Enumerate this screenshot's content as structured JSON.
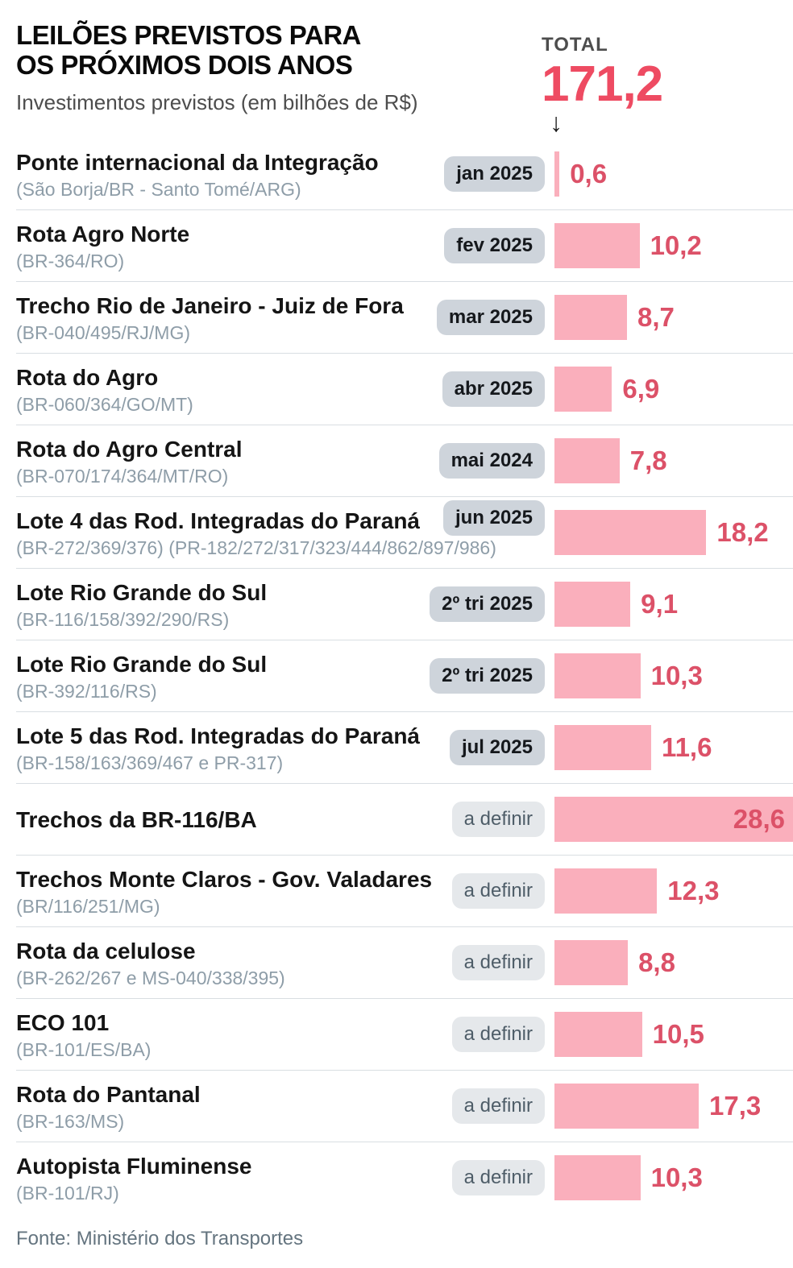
{
  "header": {
    "title_line1": "LEILÕES PREVISTOS PARA",
    "title_line2": "OS PRÓXIMOS DOIS ANOS",
    "subtitle": "Investimentos previstos (em bilhões de R$)",
    "total_label": "TOTAL",
    "total_value": "171,2",
    "arrow": "↓"
  },
  "footer": {
    "source": "Fonte: Ministério dos Transportes"
  },
  "colors": {
    "bar": "#FAAFBC",
    "value": "#DC5168",
    "total": "#EE4B62",
    "badge_dated_bg": "#CED4DB",
    "badge_tbd_bg": "#E5E8EB",
    "badge_tbd_text": "#4E5D68",
    "detail": "#8E9DA8",
    "divider": "#D9DEE2"
  },
  "chart_data": {
    "type": "bar",
    "title": "LEILÕES PREVISTOS PARA OS PRÓXIMOS DOIS ANOS",
    "subtitle": "Investimentos previstos (em bilhões de R$)",
    "unit": "bilhões de R$",
    "total": 171.2,
    "max_value": 28.6,
    "orientation": "horizontal",
    "source": "Fonte: Ministério dos Transportes",
    "items": [
      {
        "name": "Ponte internacional da Integração",
        "detail": "(São Borja/BR - Santo Tomé/ARG)",
        "date": "jan 2025",
        "date_style": "dated",
        "value": 0.6,
        "value_label": "0,6",
        "label_inside": false,
        "badge_top": false
      },
      {
        "name": "Rota Agro Norte",
        "detail": "(BR-364/RO)",
        "date": "fev 2025",
        "date_style": "dated",
        "value": 10.2,
        "value_label": "10,2",
        "label_inside": false,
        "badge_top": false
      },
      {
        "name": "Trecho Rio de Janeiro - Juiz de Fora",
        "detail": "(BR-040/495/RJ/MG)",
        "date": "mar 2025",
        "date_style": "dated",
        "value": 8.7,
        "value_label": "8,7",
        "label_inside": false,
        "badge_top": false
      },
      {
        "name": "Rota do Agro",
        "detail": "(BR-060/364/GO/MT)",
        "date": "abr 2025",
        "date_style": "dated",
        "value": 6.9,
        "value_label": "6,9",
        "label_inside": false,
        "badge_top": false
      },
      {
        "name": "Rota do Agro Central",
        "detail": "(BR-070/174/364/MT/RO)",
        "date": "mai 2024",
        "date_style": "dated",
        "value": 7.8,
        "value_label": "7,8",
        "label_inside": false,
        "badge_top": false
      },
      {
        "name": "Lote 4 das Rod. Integradas do Paraná",
        "detail": "(BR-272/369/376) (PR-182/272/317/323/444/862/897/986)",
        "date": "jun 2025",
        "date_style": "dated",
        "value": 18.2,
        "value_label": "18,2",
        "label_inside": false,
        "badge_top": true
      },
      {
        "name": "Lote Rio Grande do Sul",
        "detail": "(BR-116/158/392/290/RS)",
        "date": "2º tri 2025",
        "date_style": "dated",
        "value": 9.1,
        "value_label": "9,1",
        "label_inside": false,
        "badge_top": false
      },
      {
        "name": "Lote Rio Grande do Sul",
        "detail": "(BR-392/116/RS)",
        "date": "2º tri 2025",
        "date_style": "dated",
        "value": 10.3,
        "value_label": "10,3",
        "label_inside": false,
        "badge_top": false
      },
      {
        "name": "Lote 5 das Rod. Integradas do Paraná",
        "detail": "(BR-158/163/369/467 e PR-317)",
        "date": "jul 2025",
        "date_style": "dated",
        "value": 11.6,
        "value_label": "11,6",
        "label_inside": false,
        "badge_top": false
      },
      {
        "name": "Trechos da BR-116/BA",
        "detail": "",
        "date": "a definir",
        "date_style": "tbd",
        "value": 28.6,
        "value_label": "28,6",
        "label_inside": true,
        "badge_top": false
      },
      {
        "name": "Trechos Monte Claros - Gov. Valadares",
        "detail": "(BR/116/251/MG)",
        "date": "a definir",
        "date_style": "tbd",
        "value": 12.3,
        "value_label": "12,3",
        "label_inside": false,
        "badge_top": false
      },
      {
        "name": "Rota da celulose",
        "detail": "(BR-262/267 e MS-040/338/395)",
        "date": "a definir",
        "date_style": "tbd",
        "value": 8.8,
        "value_label": "8,8",
        "label_inside": false,
        "badge_top": false
      },
      {
        "name": "ECO 101",
        "detail": "(BR-101/ES/BA)",
        "date": "a definir",
        "date_style": "tbd",
        "value": 10.5,
        "value_label": "10,5",
        "label_inside": false,
        "badge_top": false
      },
      {
        "name": "Rota do Pantanal",
        "detail": "(BR-163/MS)",
        "date": "a definir",
        "date_style": "tbd",
        "value": 17.3,
        "value_label": "17,3",
        "label_inside": false,
        "badge_top": false
      },
      {
        "name": "Autopista Fluminense",
        "detail": "(BR-101/RJ)",
        "date": "a definir",
        "date_style": "tbd",
        "value": 10.3,
        "value_label": "10,3",
        "label_inside": false,
        "badge_top": false
      }
    ]
  }
}
